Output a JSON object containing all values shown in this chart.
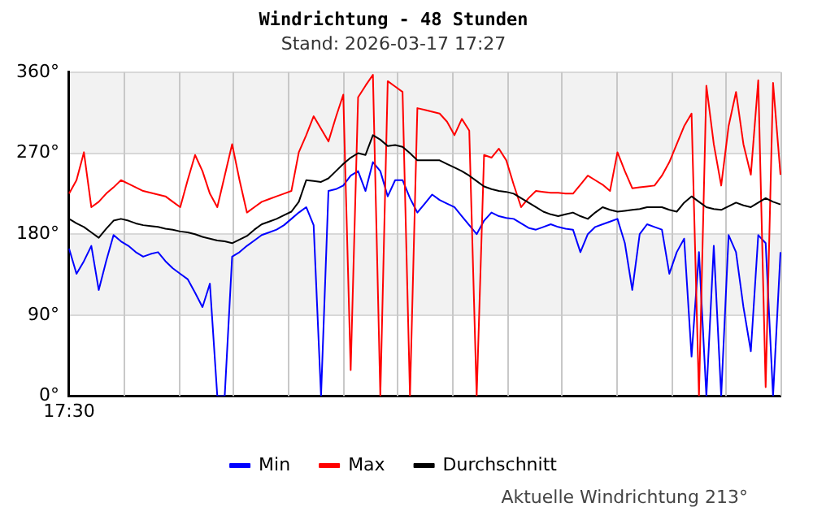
{
  "chart_data": {
    "type": "line",
    "title": "Windrichtung - 48 Stunden",
    "subtitle": "Stand: 2026-03-17 17:27",
    "annotations": [
      "Aktuelle Windrichtung 213°"
    ],
    "categories": [
      "17:30",
      null,
      null,
      null,
      null,
      null,
      null,
      null,
      null,
      null,
      null,
      null,
      null,
      null,
      null,
      null,
      null,
      null,
      null,
      null,
      null,
      null,
      null,
      null,
      null,
      null,
      null,
      null,
      null,
      null,
      null,
      null,
      null,
      null,
      null,
      null,
      null,
      null,
      null,
      null,
      null,
      null,
      null,
      null,
      null,
      null,
      null,
      null,
      null,
      null,
      null,
      null,
      null,
      null,
      null,
      null,
      null,
      null,
      null,
      null,
      null,
      null,
      null,
      null,
      null,
      null,
      null,
      null,
      null,
      null,
      null,
      null,
      null,
      null,
      null,
      null,
      null,
      null,
      null,
      null,
      null,
      null,
      null,
      null,
      null,
      null,
      null,
      null,
      null,
      null,
      null,
      null,
      null,
      null,
      null,
      null,
      null
    ],
    "ylim": [
      0,
      360
    ],
    "yticks": [
      {
        "value": 0,
        "label": "0°"
      },
      {
        "value": 90,
        "label": "90°"
      },
      {
        "value": 180,
        "label": "180°"
      },
      {
        "value": 270,
        "label": "270°"
      },
      {
        "value": 360,
        "label": "360°"
      }
    ],
    "grid": true,
    "legend": "bottom",
    "marker": "none",
    "line_style": "solid",
    "bands": [
      {
        "axis": "y",
        "from": 90,
        "to": 180,
        "color": "#f2f2f2"
      },
      {
        "axis": "y",
        "from": 270,
        "to": 360,
        "color": "#f2f2f2"
      }
    ],
    "series": [
      {
        "name": "Min",
        "color": "#0000ff",
        "values": [
          164,
          136,
          150,
          167,
          118,
          150,
          179,
          172,
          167,
          160,
          155,
          158,
          160,
          150,
          142,
          136,
          130,
          115,
          99,
          125,
          0,
          0,
          155,
          160,
          167,
          173,
          179,
          182,
          185,
          190,
          197,
          204,
          210,
          190,
          0,
          228,
          230,
          234,
          245,
          250,
          228,
          260,
          250,
          222,
          240,
          240,
          220,
          204,
          214,
          224,
          218,
          214,
          210,
          200,
          190,
          180,
          195,
          204,
          200,
          198,
          197,
          192,
          187,
          185,
          188,
          191,
          188,
          186,
          185,
          160,
          180,
          188,
          191,
          194,
          197,
          170,
          118,
          180,
          191,
          188,
          185,
          136,
          160,
          175,
          44,
          160,
          0,
          167,
          0,
          179,
          160,
          99,
          50,
          179,
          170,
          0,
          160
        ]
      },
      {
        "name": "Max",
        "color": "#ff0000",
        "values": [
          225,
          240,
          271,
          210,
          216,
          225,
          232,
          240,
          236,
          232,
          228,
          226,
          224,
          222,
          216,
          210,
          240,
          268,
          250,
          225,
          210,
          245,
          280,
          240,
          204,
          210,
          216,
          219,
          222,
          225,
          228,
          271,
          290,
          311,
          297,
          283,
          310,
          335,
          29,
          332,
          345,
          357,
          0,
          350,
          344,
          338,
          0,
          320,
          318,
          316,
          314,
          305,
          290,
          308,
          295,
          0,
          268,
          265,
          275,
          262,
          235,
          210,
          220,
          228,
          227,
          226,
          226,
          225,
          225,
          235,
          245,
          240,
          235,
          228,
          271,
          250,
          231,
          232,
          233,
          234,
          245,
          260,
          280,
          300,
          314,
          0,
          345,
          280,
          234,
          300,
          338,
          280,
          246,
          351,
          10,
          348,
          246
        ]
      },
      {
        "name": "Durchschnitt",
        "color": "#000000",
        "values": [
          197,
          192,
          188,
          182,
          176,
          186,
          195,
          197,
          195,
          192,
          190,
          189,
          188,
          186,
          185,
          183,
          182,
          180,
          177,
          175,
          173,
          172,
          170,
          174,
          178,
          185,
          191,
          194,
          197,
          201,
          205,
          216,
          240,
          239,
          238,
          242,
          250,
          258,
          265,
          270,
          268,
          290,
          285,
          278,
          279,
          277,
          270,
          262,
          262,
          262,
          262,
          258,
          254,
          250,
          245,
          239,
          233,
          230,
          228,
          227,
          225,
          220,
          215,
          210,
          205,
          202,
          200,
          202,
          204,
          200,
          197,
          204,
          210,
          207,
          205,
          206,
          207,
          208,
          210,
          210,
          210,
          207,
          205,
          215,
          222,
          216,
          210,
          208,
          207,
          211,
          215,
          212,
          210,
          215,
          220,
          216,
          213
        ]
      }
    ]
  }
}
